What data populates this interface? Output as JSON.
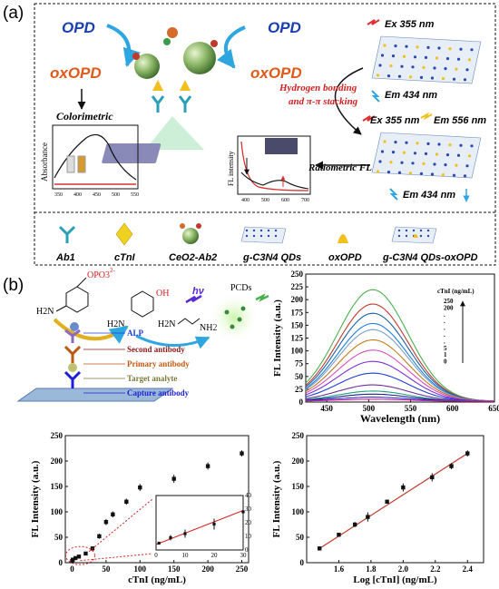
{
  "panel_a": {
    "label": "(a)",
    "opd_left": "OPD",
    "opd_right": "OPD",
    "oxopd_left": "oxOPD",
    "oxopd_right": "oxOPD",
    "colorimetric": "Colorimetric",
    "absorbance": "Absorbance",
    "abs_ticks": [
      "350",
      "400",
      "450",
      "500",
      "550"
    ],
    "ex1": "Ex 355 nm",
    "em1": "Em 434 nm",
    "hbond1": "Hydrogen bonding",
    "hbond2": "and π-π stacking",
    "ex2": "Ex 355 nm",
    "em2": "Em 556 nm",
    "em3": "Em 434 nm",
    "ratiometric": "Ratiometric FL",
    "fl_intensity": "FL intensity",
    "fl_ticks": [
      "400",
      "500",
      "600",
      "700"
    ],
    "legend": [
      "Ab1",
      "cTnI",
      "CeO2-Ab2",
      "g-C3N4 QDs",
      "oxOPD",
      "g-C3N4 QDs-oxOPD"
    ]
  },
  "panel_b": {
    "label": "(b)",
    "opo3": "OPO3",
    "superscript": "2-",
    "h2n": "H2N",
    "oh": "OH",
    "h2n2": "H2N",
    "nh2": "NH2",
    "hv": "hν",
    "pcds": "PCDs",
    "layers": [
      "ALP",
      "Second antibody",
      "Primary antibody",
      "Target analyte",
      "Capture antibody"
    ],
    "layer_colors": [
      "#1f3fd6",
      "#8b1a1a",
      "#c1580f",
      "#7a7a3a",
      "#1f1fd6"
    ]
  },
  "chart_data": [
    {
      "type": "line",
      "ylabel": "FL Intensity (a.u.)",
      "xlabel": "Wavelength (nm)",
      "xlim": [
        425,
        650
      ],
      "ylim": [
        0,
        250
      ],
      "xticks": [
        "450",
        "500",
        "550",
        "600",
        "650"
      ],
      "yticks": [
        "0",
        "25",
        "50",
        "75",
        "100",
        "125",
        "150",
        "175",
        "200",
        "225",
        "250"
      ],
      "legend_title": "cTnI (ng/mL)",
      "legend_entries": [
        "250",
        "200",
        ".",
        ".",
        ".",
        ".",
        ".",
        "5",
        "1",
        "0"
      ],
      "peak_x": 505,
      "peaks": [
        218,
        190,
        172,
        152,
        140,
        120,
        100,
        78,
        55,
        32,
        20,
        14,
        8,
        4
      ],
      "colors": [
        "#4caf50",
        "#c0392b",
        "#1f5fa8",
        "#1f7fd6",
        "#7fa0c8",
        "#c07a1f",
        "#d64fc0",
        "#7d2fd6",
        "#1f3fd6",
        "#6f2f9f",
        "#1fa07f",
        "#1f1f8f",
        "#2f2fd6",
        "#d61f8f"
      ]
    },
    {
      "type": "scatter",
      "ylabel": "FL Intensity (a.u.)",
      "xlabel": "cTnI (ng/mL)",
      "xlim": [
        -10,
        260
      ],
      "ylim": [
        0,
        250
      ],
      "xticks": [
        "0",
        "50",
        "100",
        "150",
        "200",
        "250"
      ],
      "yticks": [
        "0",
        "50",
        "100",
        "150",
        "200",
        "250"
      ],
      "x": [
        0,
        1,
        5,
        10,
        20,
        30,
        40,
        50,
        60,
        80,
        100,
        150,
        200,
        250
      ],
      "y": [
        3,
        6,
        9,
        12,
        18,
        28,
        52,
        80,
        95,
        120,
        148,
        165,
        190,
        215
      ],
      "err": [
        2,
        2,
        2,
        3,
        3,
        4,
        5,
        6,
        6,
        6,
        7,
        8,
        7,
        6
      ],
      "inset": {
        "xlim": [
          0,
          30
        ],
        "ylim": [
          0,
          40
        ],
        "xticks": [
          "0",
          "10",
          "20",
          "30"
        ],
        "yticks": [
          "0",
          "10",
          "20",
          "30",
          "40"
        ],
        "x": [
          1,
          5,
          10,
          20,
          30
        ],
        "y": [
          5,
          9,
          12,
          19,
          28
        ],
        "err": [
          1,
          2,
          3,
          4,
          4
        ]
      }
    },
    {
      "type": "scatter",
      "ylabel": "FL Intensity (a.u.)",
      "xlabel": "Log [cTnI] (ng/mL)",
      "xlim": [
        1.4,
        2.5
      ],
      "ylim": [
        0,
        250
      ],
      "xticks": [
        "1.6",
        "1.8",
        "2.0",
        "2.2",
        "2.4"
      ],
      "yticks": [
        "0",
        "50",
        "100",
        "150",
        "200",
        "250"
      ],
      "x": [
        1.48,
        1.6,
        1.7,
        1.78,
        1.9,
        2.0,
        2.18,
        2.3,
        2.4
      ],
      "y": [
        28,
        55,
        75,
        90,
        120,
        148,
        168,
        190,
        215
      ],
      "err": [
        4,
        4,
        5,
        9,
        4,
        8,
        8,
        6,
        6
      ],
      "fit": [
        [
          1.48,
          28
        ],
        [
          2.4,
          215
        ]
      ]
    }
  ]
}
